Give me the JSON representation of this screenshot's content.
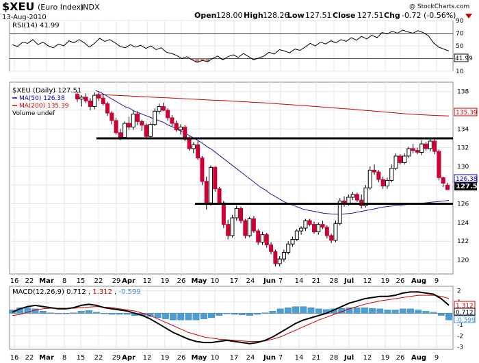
{
  "header": {
    "symbol": "$XEU",
    "name": "(Euro Index)",
    "exchange": "INDX",
    "date": "13-Aug-2010",
    "open_label": "Open",
    "open": "128.00",
    "high_label": "High",
    "high": "128.26",
    "low_label": "Low",
    "low": "127.51",
    "close_label": "Close",
    "close": "127.51",
    "chg_label": "Chg",
    "chg": "-0.72 (-0.56%)",
    "watermark": "@ StockCharts.com"
  },
  "rsi": {
    "label": "RSI(14) 41.99",
    "last": "41.99",
    "ticks": [
      "90",
      "70",
      "50",
      "30",
      "10"
    ],
    "overbought": 70,
    "oversold": 30
  },
  "price": {
    "legend_main": "$XEU (Daily) 127.51",
    "legend_ma50": "MA(50) 126.38",
    "legend_ma200": "MA(200) 135.39",
    "legend_volume": "Volume undef",
    "ticks": [
      "138",
      "136",
      "134",
      "132",
      "130",
      "128",
      "126",
      "124",
      "122",
      "120"
    ],
    "last_close": "127.51",
    "ma50_last": "126.38",
    "ma200_last": "135.39",
    "resistance_level": 133.0,
    "support_level": 126.0
  },
  "macd": {
    "label_prefix": "MACD(12,26,9)",
    "macd_val": "0.712",
    "signal_val": "1.312",
    "hist_val": "-0.599",
    "ticks": [
      "2",
      "1",
      "0",
      "-1",
      "-2",
      "-3"
    ],
    "box_signal": "1.312",
    "box_macd": "0.712",
    "box_hist": "-0.599"
  },
  "xaxis_labels": [
    "16",
    "22",
    "Mar",
    "8",
    "15",
    "22",
    "29",
    "Apr",
    "12",
    "19",
    "26",
    "May",
    "10",
    "17",
    "24",
    "Jun",
    "7",
    "14",
    "21",
    "28",
    "Jul",
    "12",
    "19",
    "26",
    "Aug",
    "9"
  ],
  "chart_data": [
    {
      "type": "line",
      "title": "RSI(14) 41.99",
      "ylim": [
        10,
        90
      ],
      "series": [
        {
          "name": "RSI(14)",
          "values": [
            52,
            49,
            56,
            54,
            60,
            52,
            56,
            50,
            47,
            53,
            50,
            58,
            55,
            60,
            55,
            48,
            54,
            62,
            57,
            60,
            55,
            49,
            47,
            52,
            48,
            51,
            46,
            50,
            44,
            47,
            40,
            38,
            35,
            30,
            33,
            28,
            24,
            27,
            25,
            30,
            34,
            28,
            33,
            36,
            32,
            38,
            33,
            28,
            31,
            34,
            40,
            37,
            44,
            42,
            39,
            45,
            43,
            48,
            54,
            50,
            56,
            53,
            58,
            55,
            60,
            57,
            63,
            59,
            65,
            61,
            67,
            63,
            71,
            69,
            73,
            70,
            75,
            72,
            70,
            74,
            71,
            66,
            55,
            48,
            45,
            42
          ]
        }
      ]
    },
    {
      "type": "candlestick",
      "title": "$XEU (Daily) 127.51",
      "ylim": [
        118.5,
        139
      ],
      "open": "128.00",
      "high": "128.26",
      "low": "127.51",
      "close": "127.51",
      "candles": [
        {
          "o": 137.7,
          "h": 138.0,
          "l": 136.9,
          "c": 137.2
        },
        {
          "o": 137.2,
          "h": 137.6,
          "l": 136.4,
          "c": 137.4
        },
        {
          "o": 137.4,
          "h": 137.8,
          "l": 136.8,
          "c": 137.0
        },
        {
          "o": 137.0,
          "h": 137.3,
          "l": 136.0,
          "c": 136.4
        },
        {
          "o": 136.4,
          "h": 137.9,
          "l": 136.1,
          "c": 137.6
        },
        {
          "o": 137.6,
          "h": 137.9,
          "l": 137.0,
          "c": 137.3
        },
        {
          "o": 137.3,
          "h": 137.7,
          "l": 136.5,
          "c": 136.7
        },
        {
          "o": 136.7,
          "h": 136.9,
          "l": 135.4,
          "c": 135.7
        },
        {
          "o": 135.7,
          "h": 135.9,
          "l": 134.5,
          "c": 134.9
        },
        {
          "o": 134.9,
          "h": 135.2,
          "l": 133.4,
          "c": 133.6
        },
        {
          "o": 133.6,
          "h": 134.0,
          "l": 132.8,
          "c": 133.1
        },
        {
          "o": 133.1,
          "h": 134.8,
          "l": 132.9,
          "c": 134.6
        },
        {
          "o": 134.6,
          "h": 135.3,
          "l": 133.9,
          "c": 134.2
        },
        {
          "o": 134.2,
          "h": 136.0,
          "l": 133.9,
          "c": 135.6
        },
        {
          "o": 135.6,
          "h": 135.9,
          "l": 134.4,
          "c": 134.8
        },
        {
          "o": 134.8,
          "h": 135.0,
          "l": 133.8,
          "c": 134.4
        },
        {
          "o": 134.4,
          "h": 134.6,
          "l": 133.0,
          "c": 133.2
        },
        {
          "o": 133.2,
          "h": 134.7,
          "l": 133.0,
          "c": 134.5
        },
        {
          "o": 134.5,
          "h": 136.2,
          "l": 134.3,
          "c": 135.9
        },
        {
          "o": 135.9,
          "h": 136.7,
          "l": 135.6,
          "c": 136.4
        },
        {
          "o": 136.4,
          "h": 136.8,
          "l": 135.9,
          "c": 136.0
        },
        {
          "o": 136.0,
          "h": 136.2,
          "l": 134.9,
          "c": 135.2
        },
        {
          "o": 135.2,
          "h": 135.5,
          "l": 134.3,
          "c": 134.6
        },
        {
          "o": 134.6,
          "h": 134.9,
          "l": 133.7,
          "c": 133.9
        },
        {
          "o": 133.9,
          "h": 134.5,
          "l": 133.4,
          "c": 134.2
        },
        {
          "o": 134.2,
          "h": 134.4,
          "l": 132.7,
          "c": 132.9
        },
        {
          "o": 132.9,
          "h": 133.2,
          "l": 131.7,
          "c": 131.9
        },
        {
          "o": 131.9,
          "h": 132.6,
          "l": 131.4,
          "c": 132.3
        },
        {
          "o": 132.3,
          "h": 132.7,
          "l": 130.7,
          "c": 130.9
        },
        {
          "o": 130.9,
          "h": 131.1,
          "l": 128.0,
          "c": 128.4
        },
        {
          "o": 128.4,
          "h": 128.9,
          "l": 125.4,
          "c": 126.1
        },
        {
          "o": 126.1,
          "h": 130.1,
          "l": 125.8,
          "c": 129.9
        },
        {
          "o": 129.9,
          "h": 130.0,
          "l": 127.3,
          "c": 127.6
        },
        {
          "o": 127.6,
          "h": 127.8,
          "l": 125.9,
          "c": 126.1
        },
        {
          "o": 126.1,
          "h": 126.3,
          "l": 123.4,
          "c": 123.8
        },
        {
          "o": 123.8,
          "h": 124.3,
          "l": 122.2,
          "c": 122.6
        },
        {
          "o": 122.6,
          "h": 124.8,
          "l": 122.4,
          "c": 124.5
        },
        {
          "o": 124.5,
          "h": 125.8,
          "l": 124.2,
          "c": 125.5
        },
        {
          "o": 125.5,
          "h": 125.7,
          "l": 123.9,
          "c": 124.2
        },
        {
          "o": 124.2,
          "h": 124.4,
          "l": 122.3,
          "c": 122.6
        },
        {
          "o": 122.6,
          "h": 124.6,
          "l": 122.4,
          "c": 124.4
        },
        {
          "o": 124.4,
          "h": 124.7,
          "l": 122.9,
          "c": 123.1
        },
        {
          "o": 123.1,
          "h": 123.3,
          "l": 121.6,
          "c": 121.9
        },
        {
          "o": 121.9,
          "h": 123.0,
          "l": 121.6,
          "c": 122.7
        },
        {
          "o": 122.7,
          "h": 122.9,
          "l": 121.3,
          "c": 121.6
        },
        {
          "o": 121.6,
          "h": 121.9,
          "l": 120.6,
          "c": 120.9
        },
        {
          "o": 120.9,
          "h": 121.1,
          "l": 119.3,
          "c": 119.6
        },
        {
          "o": 119.6,
          "h": 120.4,
          "l": 119.3,
          "c": 120.1
        },
        {
          "o": 120.1,
          "h": 121.1,
          "l": 119.8,
          "c": 120.8
        },
        {
          "o": 120.8,
          "h": 122.0,
          "l": 120.6,
          "c": 121.7
        },
        {
          "o": 121.7,
          "h": 122.5,
          "l": 121.4,
          "c": 122.2
        },
        {
          "o": 122.2,
          "h": 123.3,
          "l": 122.0,
          "c": 123.1
        },
        {
          "o": 123.1,
          "h": 123.6,
          "l": 122.7,
          "c": 123.4
        },
        {
          "o": 123.4,
          "h": 124.4,
          "l": 123.1,
          "c": 124.2
        },
        {
          "o": 124.2,
          "h": 124.4,
          "l": 123.6,
          "c": 123.8
        },
        {
          "o": 123.8,
          "h": 124.1,
          "l": 122.8,
          "c": 123.0
        },
        {
          "o": 123.0,
          "h": 124.0,
          "l": 122.7,
          "c": 123.8
        },
        {
          "o": 123.8,
          "h": 124.2,
          "l": 123.3,
          "c": 123.5
        },
        {
          "o": 123.5,
          "h": 123.7,
          "l": 122.3,
          "c": 122.6
        },
        {
          "o": 122.6,
          "h": 122.8,
          "l": 121.8,
          "c": 122.1
        },
        {
          "o": 122.1,
          "h": 124.2,
          "l": 121.9,
          "c": 123.9
        },
        {
          "o": 123.9,
          "h": 126.6,
          "l": 123.7,
          "c": 126.3
        },
        {
          "o": 126.3,
          "h": 126.8,
          "l": 125.7,
          "c": 126.0
        },
        {
          "o": 126.0,
          "h": 127.0,
          "l": 125.8,
          "c": 126.7
        },
        {
          "o": 126.7,
          "h": 127.3,
          "l": 126.4,
          "c": 127.0
        },
        {
          "o": 127.0,
          "h": 127.2,
          "l": 126.2,
          "c": 126.4
        },
        {
          "o": 126.4,
          "h": 127.0,
          "l": 125.5,
          "c": 125.8
        },
        {
          "o": 125.8,
          "h": 128.0,
          "l": 125.6,
          "c": 127.7
        },
        {
          "o": 127.7,
          "h": 130.0,
          "l": 127.5,
          "c": 129.6
        },
        {
          "o": 129.6,
          "h": 130.2,
          "l": 129.1,
          "c": 129.4
        },
        {
          "o": 129.4,
          "h": 129.6,
          "l": 128.3,
          "c": 128.6
        },
        {
          "o": 128.6,
          "h": 128.9,
          "l": 127.6,
          "c": 127.9
        },
        {
          "o": 127.9,
          "h": 128.8,
          "l": 127.6,
          "c": 128.5
        },
        {
          "o": 128.5,
          "h": 130.2,
          "l": 128.3,
          "c": 129.8
        },
        {
          "o": 129.8,
          "h": 131.4,
          "l": 129.6,
          "c": 131.1
        },
        {
          "o": 131.1,
          "h": 131.3,
          "l": 130.2,
          "c": 130.4
        },
        {
          "o": 130.4,
          "h": 131.4,
          "l": 130.2,
          "c": 131.1
        },
        {
          "o": 131.1,
          "h": 132.1,
          "l": 130.9,
          "c": 131.9
        },
        {
          "o": 131.9,
          "h": 132.4,
          "l": 131.4,
          "c": 131.7
        },
        {
          "o": 131.7,
          "h": 132.0,
          "l": 131.3,
          "c": 131.5
        },
        {
          "o": 131.5,
          "h": 132.8,
          "l": 131.2,
          "c": 132.4
        },
        {
          "o": 132.4,
          "h": 132.6,
          "l": 131.7,
          "c": 131.9
        },
        {
          "o": 131.9,
          "h": 133.1,
          "l": 131.6,
          "c": 132.7
        },
        {
          "o": 132.7,
          "h": 132.9,
          "l": 131.3,
          "c": 131.6
        },
        {
          "o": 131.6,
          "h": 131.8,
          "l": 128.5,
          "c": 128.8
        },
        {
          "o": 128.8,
          "h": 128.9,
          "l": 127.8,
          "c": 128.2
        },
        {
          "o": 128.0,
          "h": 128.26,
          "l": 127.51,
          "c": 127.51
        }
      ],
      "series": [
        {
          "name": "MA(50)",
          "values": [
            138.1,
            137.9,
            137.6,
            137.3,
            137.0,
            136.7,
            136.4,
            136.2,
            135.9,
            135.7,
            135.5,
            135.3,
            135.1,
            134.9,
            134.7,
            134.4,
            134.2,
            133.9,
            133.7,
            133.4,
            133.1,
            132.8,
            132.5,
            132.1,
            131.8,
            131.4,
            131.0,
            130.6,
            130.2,
            129.8,
            129.4,
            129.0,
            128.6,
            128.2,
            127.8,
            127.5,
            127.1,
            126.8,
            126.5,
            126.2,
            126.0,
            125.8,
            125.6,
            125.4,
            125.3,
            125.2,
            125.1,
            125.0,
            124.95,
            124.9,
            124.9,
            124.9,
            124.95,
            125.0,
            125.1,
            125.2,
            125.3,
            125.4,
            125.5,
            125.6,
            125.7,
            125.75,
            125.8,
            125.85,
            125.9,
            125.95,
            126.0,
            126.05,
            126.1,
            126.15,
            126.2,
            126.25,
            126.3,
            126.38
          ]
        },
        {
          "name": "MA(200)",
          "values": [
            137.7,
            137.62,
            137.55,
            137.48,
            137.4,
            137.33,
            137.25,
            137.18,
            137.1,
            137.03,
            136.95,
            136.87,
            136.78,
            136.68,
            136.58,
            136.47,
            136.36,
            136.24,
            136.12,
            136.0,
            135.87,
            135.74,
            135.61,
            135.52,
            135.45,
            135.39
          ]
        }
      ],
      "annotations": [
        {
          "type": "horizontal-line",
          "y": 133.0
        },
        {
          "type": "horizontal-line",
          "y": 126.0
        }
      ]
    },
    {
      "type": "line",
      "title": "MACD(12,26,9) 0.712, 1.312, -0.599",
      "ylim": [
        -3.2,
        2.4
      ],
      "series": [
        {
          "name": "MACD",
          "values": [
            0.1,
            0.4,
            0.6,
            0.7,
            0.6,
            0.5,
            0.4,
            0.4,
            0.5,
            0.7,
            0.8,
            0.7,
            0.5,
            0.4,
            0.3,
            0.2,
            0.0,
            -0.2,
            -0.5,
            -0.9,
            -1.3,
            -1.7,
            -2.0,
            -2.3,
            -2.5,
            -2.6,
            -2.6,
            -2.5,
            -2.4,
            -2.5,
            -2.6,
            -2.7,
            -2.6,
            -2.4,
            -2.1,
            -1.7,
            -1.3,
            -0.9,
            -0.6,
            -0.4,
            -0.2,
            0.0,
            0.3,
            0.6,
            0.9,
            1.1,
            1.3,
            1.4,
            1.5,
            1.5,
            1.6,
            1.8,
            1.9,
            1.9,
            1.8,
            1.7,
            1.3,
            0.712
          ]
        },
        {
          "name": "Signal",
          "values": [
            -0.2,
            -0.1,
            0.1,
            0.3,
            0.4,
            0.45,
            0.45,
            0.45,
            0.45,
            0.5,
            0.55,
            0.6,
            0.55,
            0.5,
            0.4,
            0.3,
            0.2,
            0.0,
            -0.2,
            -0.5,
            -0.8,
            -1.1,
            -1.4,
            -1.7,
            -1.9,
            -2.1,
            -2.2,
            -2.3,
            -2.35,
            -2.4,
            -2.45,
            -2.5,
            -2.5,
            -2.45,
            -2.3,
            -2.1,
            -1.8,
            -1.5,
            -1.2,
            -0.9,
            -0.6,
            -0.35,
            -0.1,
            0.15,
            0.4,
            0.6,
            0.8,
            0.95,
            1.1,
            1.2,
            1.3,
            1.4,
            1.5,
            1.6,
            1.6,
            1.6,
            1.5,
            1.312
          ]
        }
      ]
    }
  ]
}
